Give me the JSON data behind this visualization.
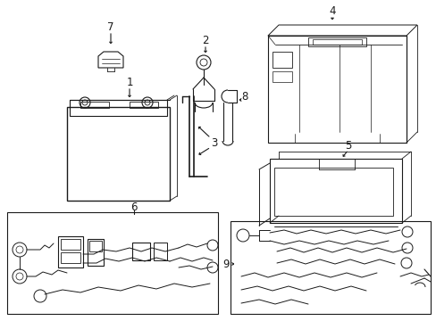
{
  "bg_color": "#ffffff",
  "line_color": "#1a1a1a",
  "fig_width": 4.89,
  "fig_height": 3.6,
  "dpi": 100,
  "label_fontsize": 8.5,
  "label_font": "DejaVu Sans"
}
